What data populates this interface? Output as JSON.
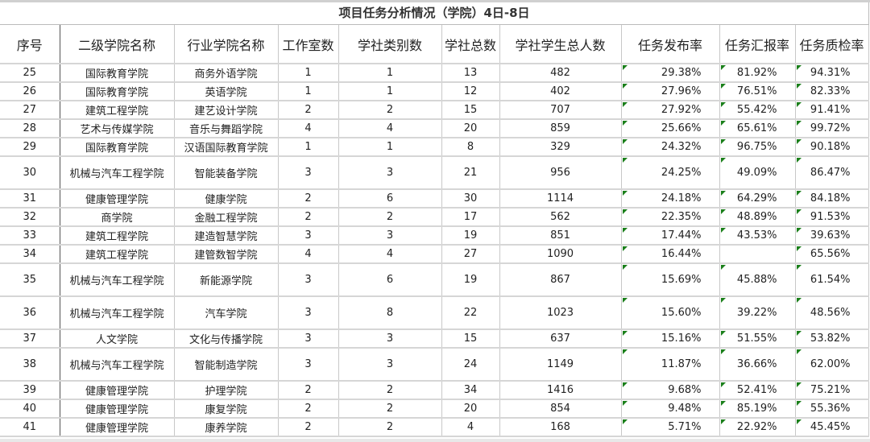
{
  "title": "项目任务分析情况（学院）4日-8日",
  "headers": [
    "序号",
    "二级学院名称",
    "行业学院名称",
    "工作室数",
    "学社类别数",
    "学社总数",
    "学社学生总人数",
    "任务发布率",
    "任务汇报率",
    "任务质检率"
  ],
  "rows": [
    [
      "25",
      "国际教育学院",
      "商务外语学院",
      "1",
      "1",
      "13",
      "482",
      "29.38%",
      "81.92%",
      "94.31%"
    ],
    [
      "26",
      "国际教育学院",
      "英语学院",
      "1",
      "1",
      "12",
      "402",
      "27.96%",
      "76.51%",
      "82.33%"
    ],
    [
      "27",
      "建筑工程学院",
      "建艺设计学院",
      "2",
      "2",
      "15",
      "707",
      "27.92%",
      "55.42%",
      "91.41%"
    ],
    [
      "28",
      "艺术与传媒学院",
      "音乐与舞蹈学院",
      "4",
      "4",
      "20",
      "859",
      "25.66%",
      "65.61%",
      "99.72%"
    ],
    [
      "29",
      "国际教育学院",
      "汉语国际教育学院",
      "1",
      "1",
      "8",
      "329",
      "24.32%",
      "96.75%",
      "90.18%"
    ],
    [
      "30",
      "机械与汽车工程学院",
      "智能装备学院",
      "3",
      "3",
      "21",
      "956",
      "24.25%",
      "49.09%",
      "86.47%"
    ],
    [
      "31",
      "健康管理学院",
      "健康学院",
      "2",
      "6",
      "30",
      "1114",
      "24.18%",
      "64.29%",
      "84.18%"
    ],
    [
      "32",
      "商学院",
      "金融工程学院",
      "2",
      "2",
      "17",
      "562",
      "22.35%",
      "48.89%",
      "91.53%"
    ],
    [
      "33",
      "建筑工程学院",
      "建造智慧学院",
      "3",
      "3",
      "19",
      "851",
      "17.44%",
      "43.53%",
      "39.63%"
    ],
    [
      "34",
      "建筑工程学院",
      "建管数智学院",
      "4",
      "4",
      "27",
      "1090",
      "16.44%",
      "",
      "65.56%"
    ],
    [
      "35",
      "机械与汽车工程学院",
      "新能源学院",
      "3",
      "6",
      "19",
      "867",
      "15.69%",
      "45.88%",
      "61.54%"
    ],
    [
      "36",
      "机械与汽车工程学院",
      "汽车学院",
      "3",
      "8",
      "22",
      "1023",
      "15.60%",
      "39.22%",
      "48.56%"
    ],
    [
      "37",
      "人文学院",
      "文化与传播学院",
      "3",
      "3",
      "15",
      "637",
      "15.16%",
      "51.55%",
      "53.82%"
    ],
    [
      "38",
      "机械与汽车工程学院",
      "智能制造学院",
      "3",
      "3",
      "24",
      "1149",
      "11.87%",
      "36.66%",
      "62.00%"
    ],
    [
      "39",
      "健康管理学院",
      "护理学院",
      "2",
      "2",
      "34",
      "1416",
      "9.68%",
      "52.41%",
      "75.21%"
    ],
    [
      "40",
      "健康管理学院",
      "康复学院",
      "2",
      "2",
      "20",
      "854",
      "9.48%",
      "85.19%",
      "55.36%"
    ],
    [
      "41",
      "健康管理学院",
      "康养学院",
      "2",
      "2",
      "4",
      "168",
      "5.71%",
      "22.92%",
      "45.45%"
    ]
  ],
  "colors": {
    "comment_marker": "#1a7f1a",
    "grid": "#c8c8c8"
  }
}
